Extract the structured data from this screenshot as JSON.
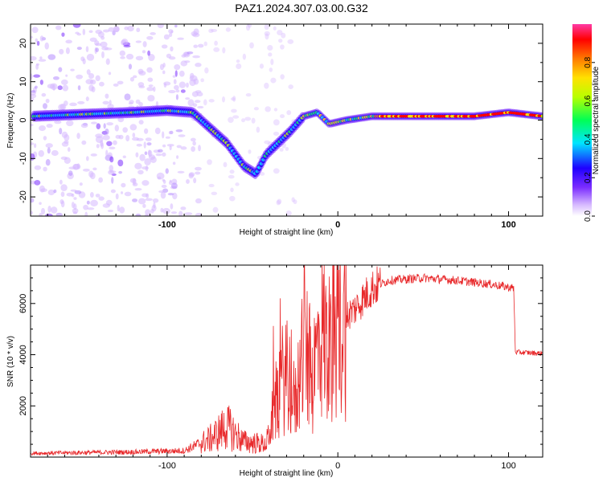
{
  "title": "PAZ1.2024.307.03.00.G32",
  "chart_data": [
    {
      "type": "heatmap",
      "xlabel": "Height of straight line (km)",
      "ylabel": "Frequency (Hz)",
      "xlim": [
        -180,
        120
      ],
      "ylim": [
        -25,
        25
      ],
      "x_ticks": [
        -100,
        0,
        100
      ],
      "y_ticks": [
        -20,
        -10,
        0,
        10,
        20
      ],
      "colorbar": {
        "label": "Normalized spectral amplitude",
        "range": [
          0,
          1
        ],
        "ticks": [
          "0.0",
          "0.2",
          "0.4",
          "0.6",
          "0.8"
        ]
      },
      "ridge": [
        {
          "x": -178,
          "y": 1
        },
        {
          "x": -150,
          "y": 1.5
        },
        {
          "x": -120,
          "y": 2
        },
        {
          "x": -100,
          "y": 2.5
        },
        {
          "x": -85,
          "y": 2
        },
        {
          "x": -75,
          "y": -2
        },
        {
          "x": -65,
          "y": -6
        },
        {
          "x": -55,
          "y": -12
        },
        {
          "x": -48,
          "y": -14
        },
        {
          "x": -42,
          "y": -9
        },
        {
          "x": -35,
          "y": -6
        },
        {
          "x": -28,
          "y": -3
        },
        {
          "x": -20,
          "y": 1
        },
        {
          "x": -12,
          "y": 2
        },
        {
          "x": -5,
          "y": -1
        },
        {
          "x": 5,
          "y": 0
        },
        {
          "x": 20,
          "y": 1
        },
        {
          "x": 50,
          "y": 1
        },
        {
          "x": 80,
          "y": 1
        },
        {
          "x": 100,
          "y": 2
        },
        {
          "x": 120,
          "y": 1
        }
      ]
    },
    {
      "type": "line",
      "xlabel": "Height of straight line (km)",
      "ylabel": "SNR (10 * v/v)",
      "xlim": [
        -180,
        120
      ],
      "ylim": [
        0,
        7500
      ],
      "x_ticks": [
        -100,
        0,
        100
      ],
      "y_ticks": [
        2000,
        4000,
        6000
      ],
      "color": "#e8292b",
      "envelope": [
        {
          "x": -180,
          "y": 150
        },
        {
          "x": -120,
          "y": 200
        },
        {
          "x": -90,
          "y": 250
        },
        {
          "x": -75,
          "y": 700
        },
        {
          "x": -65,
          "y": 1200
        },
        {
          "x": -55,
          "y": 600
        },
        {
          "x": -42,
          "y": 500
        },
        {
          "x": -35,
          "y": 2500
        },
        {
          "x": -30,
          "y": 3500
        },
        {
          "x": -25,
          "y": 2000
        },
        {
          "x": -20,
          "y": 4500
        },
        {
          "x": -15,
          "y": 3000
        },
        {
          "x": -10,
          "y": 5000
        },
        {
          "x": -5,
          "y": 4200
        },
        {
          "x": 0,
          "y": 5200
        },
        {
          "x": 10,
          "y": 5800
        },
        {
          "x": 20,
          "y": 6600
        },
        {
          "x": 30,
          "y": 6900
        },
        {
          "x": 50,
          "y": 7000
        },
        {
          "x": 70,
          "y": 6900
        },
        {
          "x": 90,
          "y": 6750
        },
        {
          "x": 103,
          "y": 6600
        },
        {
          "x": 104,
          "y": 4100
        },
        {
          "x": 120,
          "y": 4050
        }
      ]
    }
  ]
}
